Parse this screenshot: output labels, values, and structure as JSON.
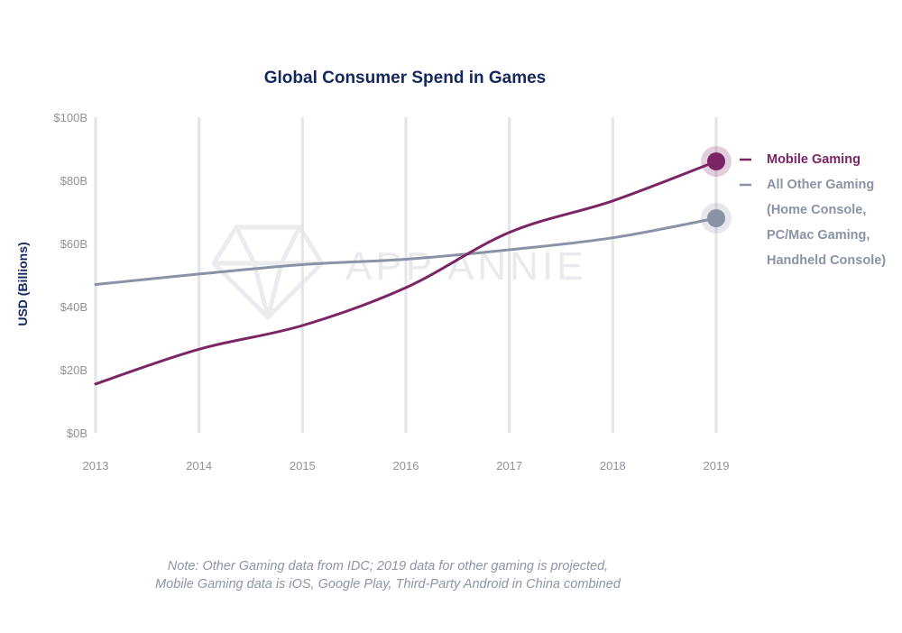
{
  "chart_data": {
    "type": "line",
    "title": "Global Consumer Spend in Games",
    "ylabel": "USD (Billions)",
    "xlabel": "",
    "x": [
      "2013",
      "2014",
      "2015",
      "2016",
      "2017",
      "2018",
      "2019"
    ],
    "ylim": [
      0,
      100
    ],
    "yticks": [
      {
        "value": 0,
        "label": "$0B"
      },
      {
        "value": 20,
        "label": "$20B"
      },
      {
        "value": 40,
        "label": "$40B"
      },
      {
        "value": 60,
        "label": "$60B"
      },
      {
        "value": 80,
        "label": "$80B"
      },
      {
        "value": 100,
        "label": "$100B"
      }
    ],
    "grid": "vertical",
    "legend_position": "right",
    "series": [
      {
        "name": "Mobile Gaming",
        "legend_lines": [
          "Mobile Gaming"
        ],
        "color": "#7b2566",
        "values": [
          15.5,
          26.5,
          34,
          46,
          63.5,
          73.5,
          86
        ]
      },
      {
        "name": "All Other Gaming (Home Console, PC/Mac Gaming, Handheld Console)",
        "legend_lines": [
          "All Other Gaming",
          "(Home Console,",
          "PC/Mac Gaming,",
          "Handheld Console)"
        ],
        "color": "#8a93a6",
        "values": [
          47,
          50.3,
          53.3,
          55,
          58,
          61.8,
          68
        ]
      }
    ],
    "annotations": [
      "Note: Other Gaming data from IDC; 2019 data for other gaming is projected,",
      "Mobile Gaming data is iOS, Google Play, Third-Party Android in China combined"
    ]
  },
  "watermark": "APP ANNIE",
  "colors": {
    "title": "#14275e",
    "tick": "#8f929a",
    "grid": "#e4e5e8"
  }
}
